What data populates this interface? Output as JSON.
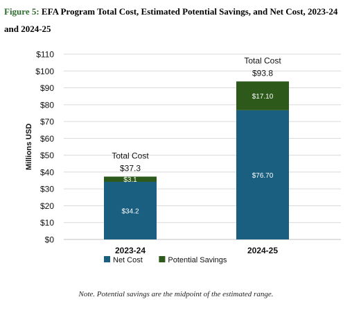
{
  "figure": {
    "label": "Figure 5:",
    "title": "EFA Program Total Cost, Estimated Potential Savings, and Net Cost, 2023-24 and 2024-25"
  },
  "note": "Note. Potential savings are the midpoint of the estimated range.",
  "chart_data": {
    "type": "bar",
    "stacked": true,
    "categories": [
      "2023-24",
      "2024-25"
    ],
    "series": [
      {
        "name": "Net Cost",
        "values": [
          34.2,
          76.7
        ],
        "labels": [
          "$34.2",
          "$76.70"
        ],
        "color": "#1a5e80"
      },
      {
        "name": "Potential Savings",
        "values": [
          3.1,
          17.1
        ],
        "labels": [
          "$3.1",
          "$17.10"
        ],
        "color": "#2d5a1b"
      }
    ],
    "totals": {
      "title": "Total Cost",
      "values": [
        37.3,
        93.8
      ],
      "labels": [
        "$37.3",
        "$93.8"
      ]
    },
    "ylabel": "Millions USD",
    "ylim": [
      0,
      110
    ],
    "yticks": [
      0,
      10,
      20,
      30,
      40,
      50,
      60,
      70,
      80,
      90,
      100,
      110
    ],
    "ytick_labels": [
      "$0",
      "$10",
      "$20",
      "$30",
      "$40",
      "$50",
      "$60",
      "$70",
      "$80",
      "$90",
      "$100",
      "$110"
    ],
    "grid": true,
    "legend_position": "bottom"
  }
}
